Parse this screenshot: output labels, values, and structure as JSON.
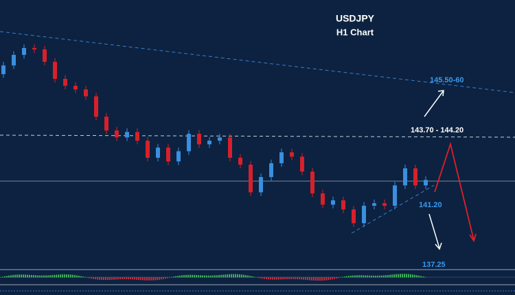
{
  "chart_data": {
    "type": "candlestick",
    "title": "USDJPY",
    "subtitle": "H1 Chart",
    "annotations": [
      "145.50-60",
      "143.70 - 144.20",
      "141.20",
      "137.25"
    ],
    "ylim": [
      140.38,
      147.74
    ],
    "up_color": "#3a8fe0",
    "down_color": "#d8202a",
    "open": [
      145.7,
      145.94,
      146.23,
      146.42,
      146.38,
      146.04,
      145.57,
      145.38,
      145.28,
      145.09,
      144.53,
      144.15,
      143.96,
      144.11,
      143.87,
      143.4,
      143.68,
      143.3,
      143.58,
      144.06,
      143.77,
      143.87,
      143.96,
      143.4,
      143.21,
      142.45,
      142.87,
      143.25,
      143.55,
      143.43,
      143.02,
      142.42,
      142.11,
      142.23,
      141.98,
      141.6,
      142.08,
      142.15,
      142.08,
      142.64,
      143.11,
      142.64
    ],
    "high": [
      146.04,
      146.33,
      146.52,
      146.52,
      146.48,
      146.14,
      145.67,
      145.48,
      145.38,
      145.19,
      144.63,
      144.25,
      144.21,
      144.21,
      143.97,
      143.78,
      143.78,
      143.68,
      144.16,
      144.16,
      143.97,
      144.06,
      144.06,
      143.5,
      143.31,
      142.97,
      143.35,
      143.65,
      143.65,
      143.53,
      143.12,
      142.52,
      142.33,
      142.33,
      142.08,
      142.18,
      142.25,
      142.25,
      142.74,
      143.21,
      143.21,
      142.89
    ],
    "low": [
      145.6,
      145.84,
      146.13,
      146.28,
      145.94,
      145.47,
      145.28,
      145.18,
      144.99,
      144.43,
      144.05,
      143.86,
      143.86,
      143.77,
      143.3,
      143.3,
      143.2,
      143.2,
      143.48,
      143.67,
      143.67,
      143.77,
      143.3,
      143.11,
      142.35,
      142.35,
      142.77,
      143.15,
      143.33,
      142.92,
      142.32,
      142.01,
      142.01,
      141.88,
      141.5,
      141.5,
      141.98,
      141.98,
      141.98,
      142.54,
      142.54,
      142.54
    ],
    "close": [
      145.94,
      146.23,
      146.42,
      146.38,
      146.04,
      145.57,
      145.38,
      145.28,
      145.09,
      144.53,
      144.15,
      143.96,
      144.11,
      143.87,
      143.4,
      143.68,
      143.3,
      143.58,
      144.06,
      143.77,
      143.87,
      143.96,
      143.4,
      143.21,
      142.45,
      142.87,
      143.25,
      143.55,
      143.43,
      143.02,
      142.42,
      142.11,
      142.23,
      141.98,
      141.6,
      142.08,
      142.15,
      142.08,
      142.64,
      143.11,
      142.64,
      142.79
    ]
  }
}
